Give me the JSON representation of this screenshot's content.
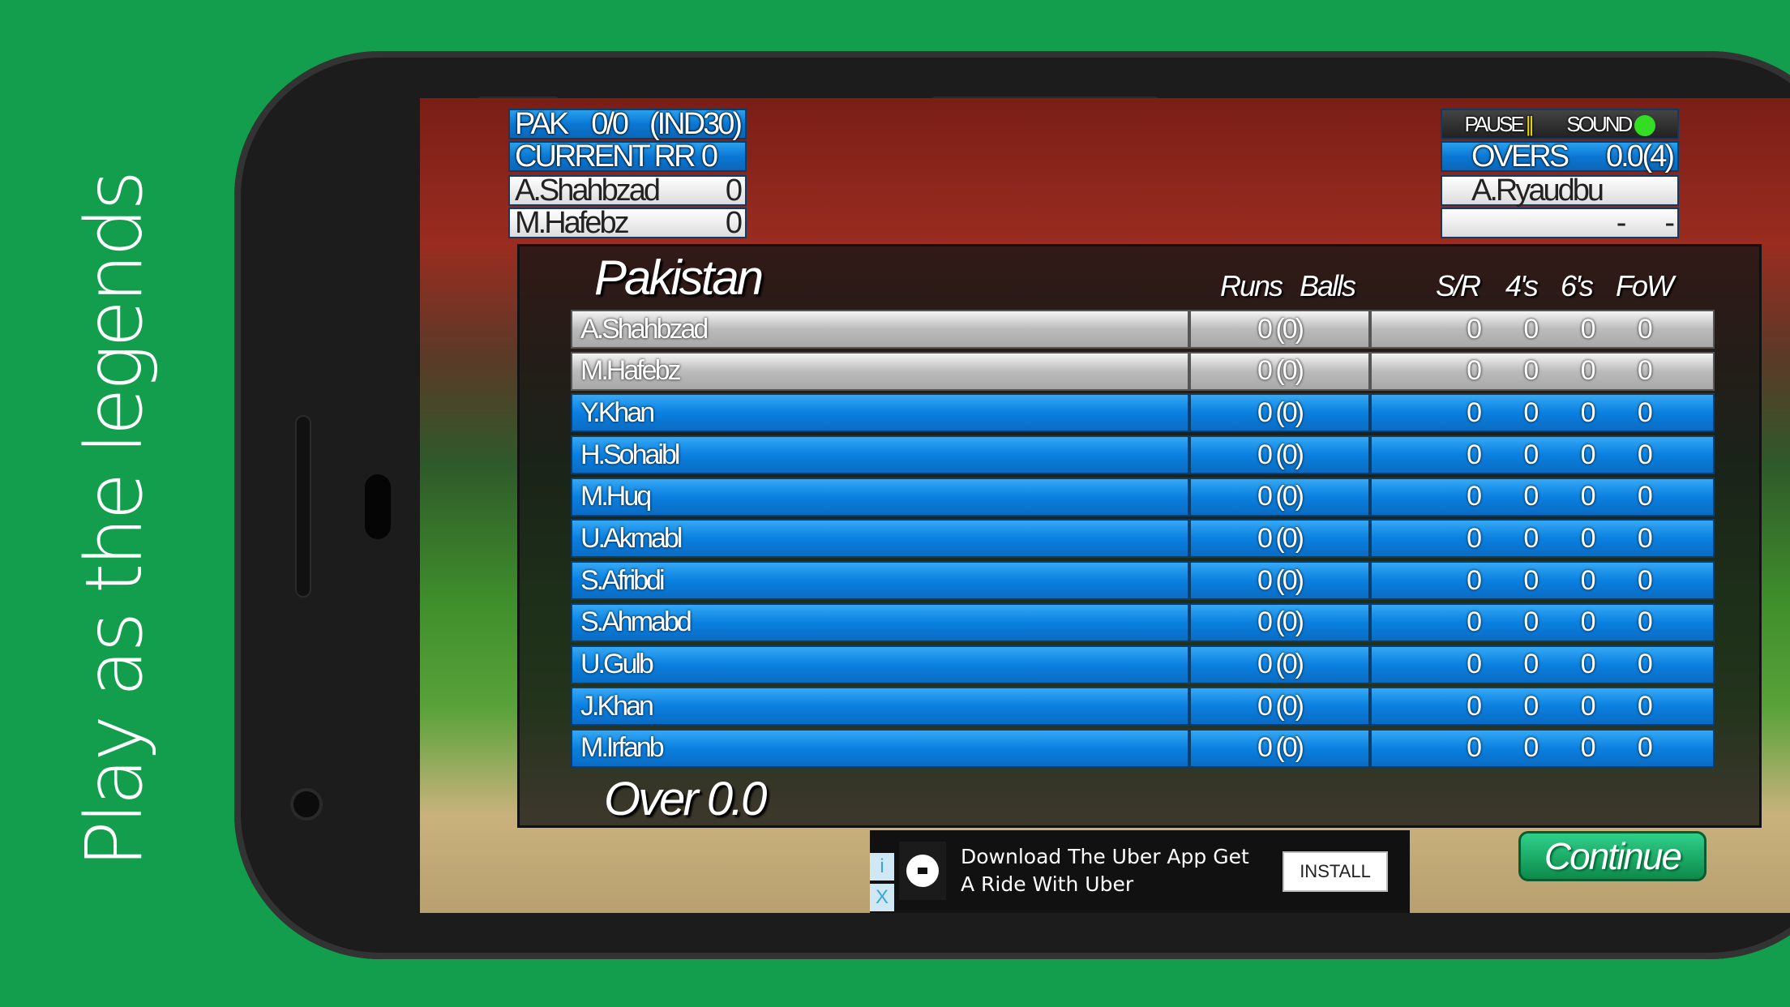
{
  "tagline": "Play as the legends",
  "hud_left": {
    "team": "PAK",
    "score": "0/0",
    "target": "(IND30)",
    "rr_label": "CURRENT RR",
    "rr_value": "0",
    "batsmen": [
      {
        "name": "A.Shahbzad",
        "runs": "0"
      },
      {
        "name": "M.Hafebz",
        "runs": "0"
      }
    ]
  },
  "hud_right": {
    "pause_label": "PAUSE",
    "pause_icon": "||",
    "sound_label": "SOUND",
    "sound_color": "#33dd22",
    "overs_label": "OVERS",
    "overs_value": "0.0",
    "overs_total": "(4)",
    "bowler": "A.Ryaudbu",
    "bowler_stats": [
      "-",
      "-"
    ]
  },
  "scorecard": {
    "title": "Pakistan",
    "headers": {
      "runs": "Runs",
      "balls": "Balls",
      "sr": "S/R",
      "fours": "4's",
      "sixes": "6's",
      "fow": "FoW"
    },
    "rows": [
      {
        "name": "A.Shahbzad",
        "rb": "0 (0)",
        "sr": "0",
        "fours": "0",
        "sixes": "0",
        "fow": "0",
        "active": true
      },
      {
        "name": "M.Hafebz",
        "rb": "0 (0)",
        "sr": "0",
        "fours": "0",
        "sixes": "0",
        "fow": "0",
        "active": true
      },
      {
        "name": "Y.Khan",
        "rb": "0 (0)",
        "sr": "0",
        "fours": "0",
        "sixes": "0",
        "fow": "0"
      },
      {
        "name": "H.Sohaibl",
        "rb": "0 (0)",
        "sr": "0",
        "fours": "0",
        "sixes": "0",
        "fow": "0"
      },
      {
        "name": "M.Huq",
        "rb": "0 (0)",
        "sr": "0",
        "fours": "0",
        "sixes": "0",
        "fow": "0"
      },
      {
        "name": "U.Akmabl",
        "rb": "0 (0)",
        "sr": "0",
        "fours": "0",
        "sixes": "0",
        "fow": "0"
      },
      {
        "name": "S.Afribdi",
        "rb": "0 (0)",
        "sr": "0",
        "fours": "0",
        "sixes": "0",
        "fow": "0"
      },
      {
        "name": "S.Ahmabd",
        "rb": "0 (0)",
        "sr": "0",
        "fours": "0",
        "sixes": "0",
        "fow": "0"
      },
      {
        "name": "U.Gulb",
        "rb": "0 (0)",
        "sr": "0",
        "fours": "0",
        "sixes": "0",
        "fow": "0"
      },
      {
        "name": "J.Khan",
        "rb": "0 (0)",
        "sr": "0",
        "fours": "0",
        "sixes": "0",
        "fow": "0"
      },
      {
        "name": "M.Irfanb",
        "rb": "0 (0)",
        "sr": "0",
        "fours": "0",
        "sixes": "0",
        "fow": "0"
      }
    ],
    "over_label": "Over",
    "over_value": "0.0"
  },
  "ad": {
    "text": "Download The Uber App Get A Ride With Uber",
    "install_label": "INSTALL",
    "info_icon": "i",
    "close_icon": "X"
  },
  "continue_label": "Continue"
}
